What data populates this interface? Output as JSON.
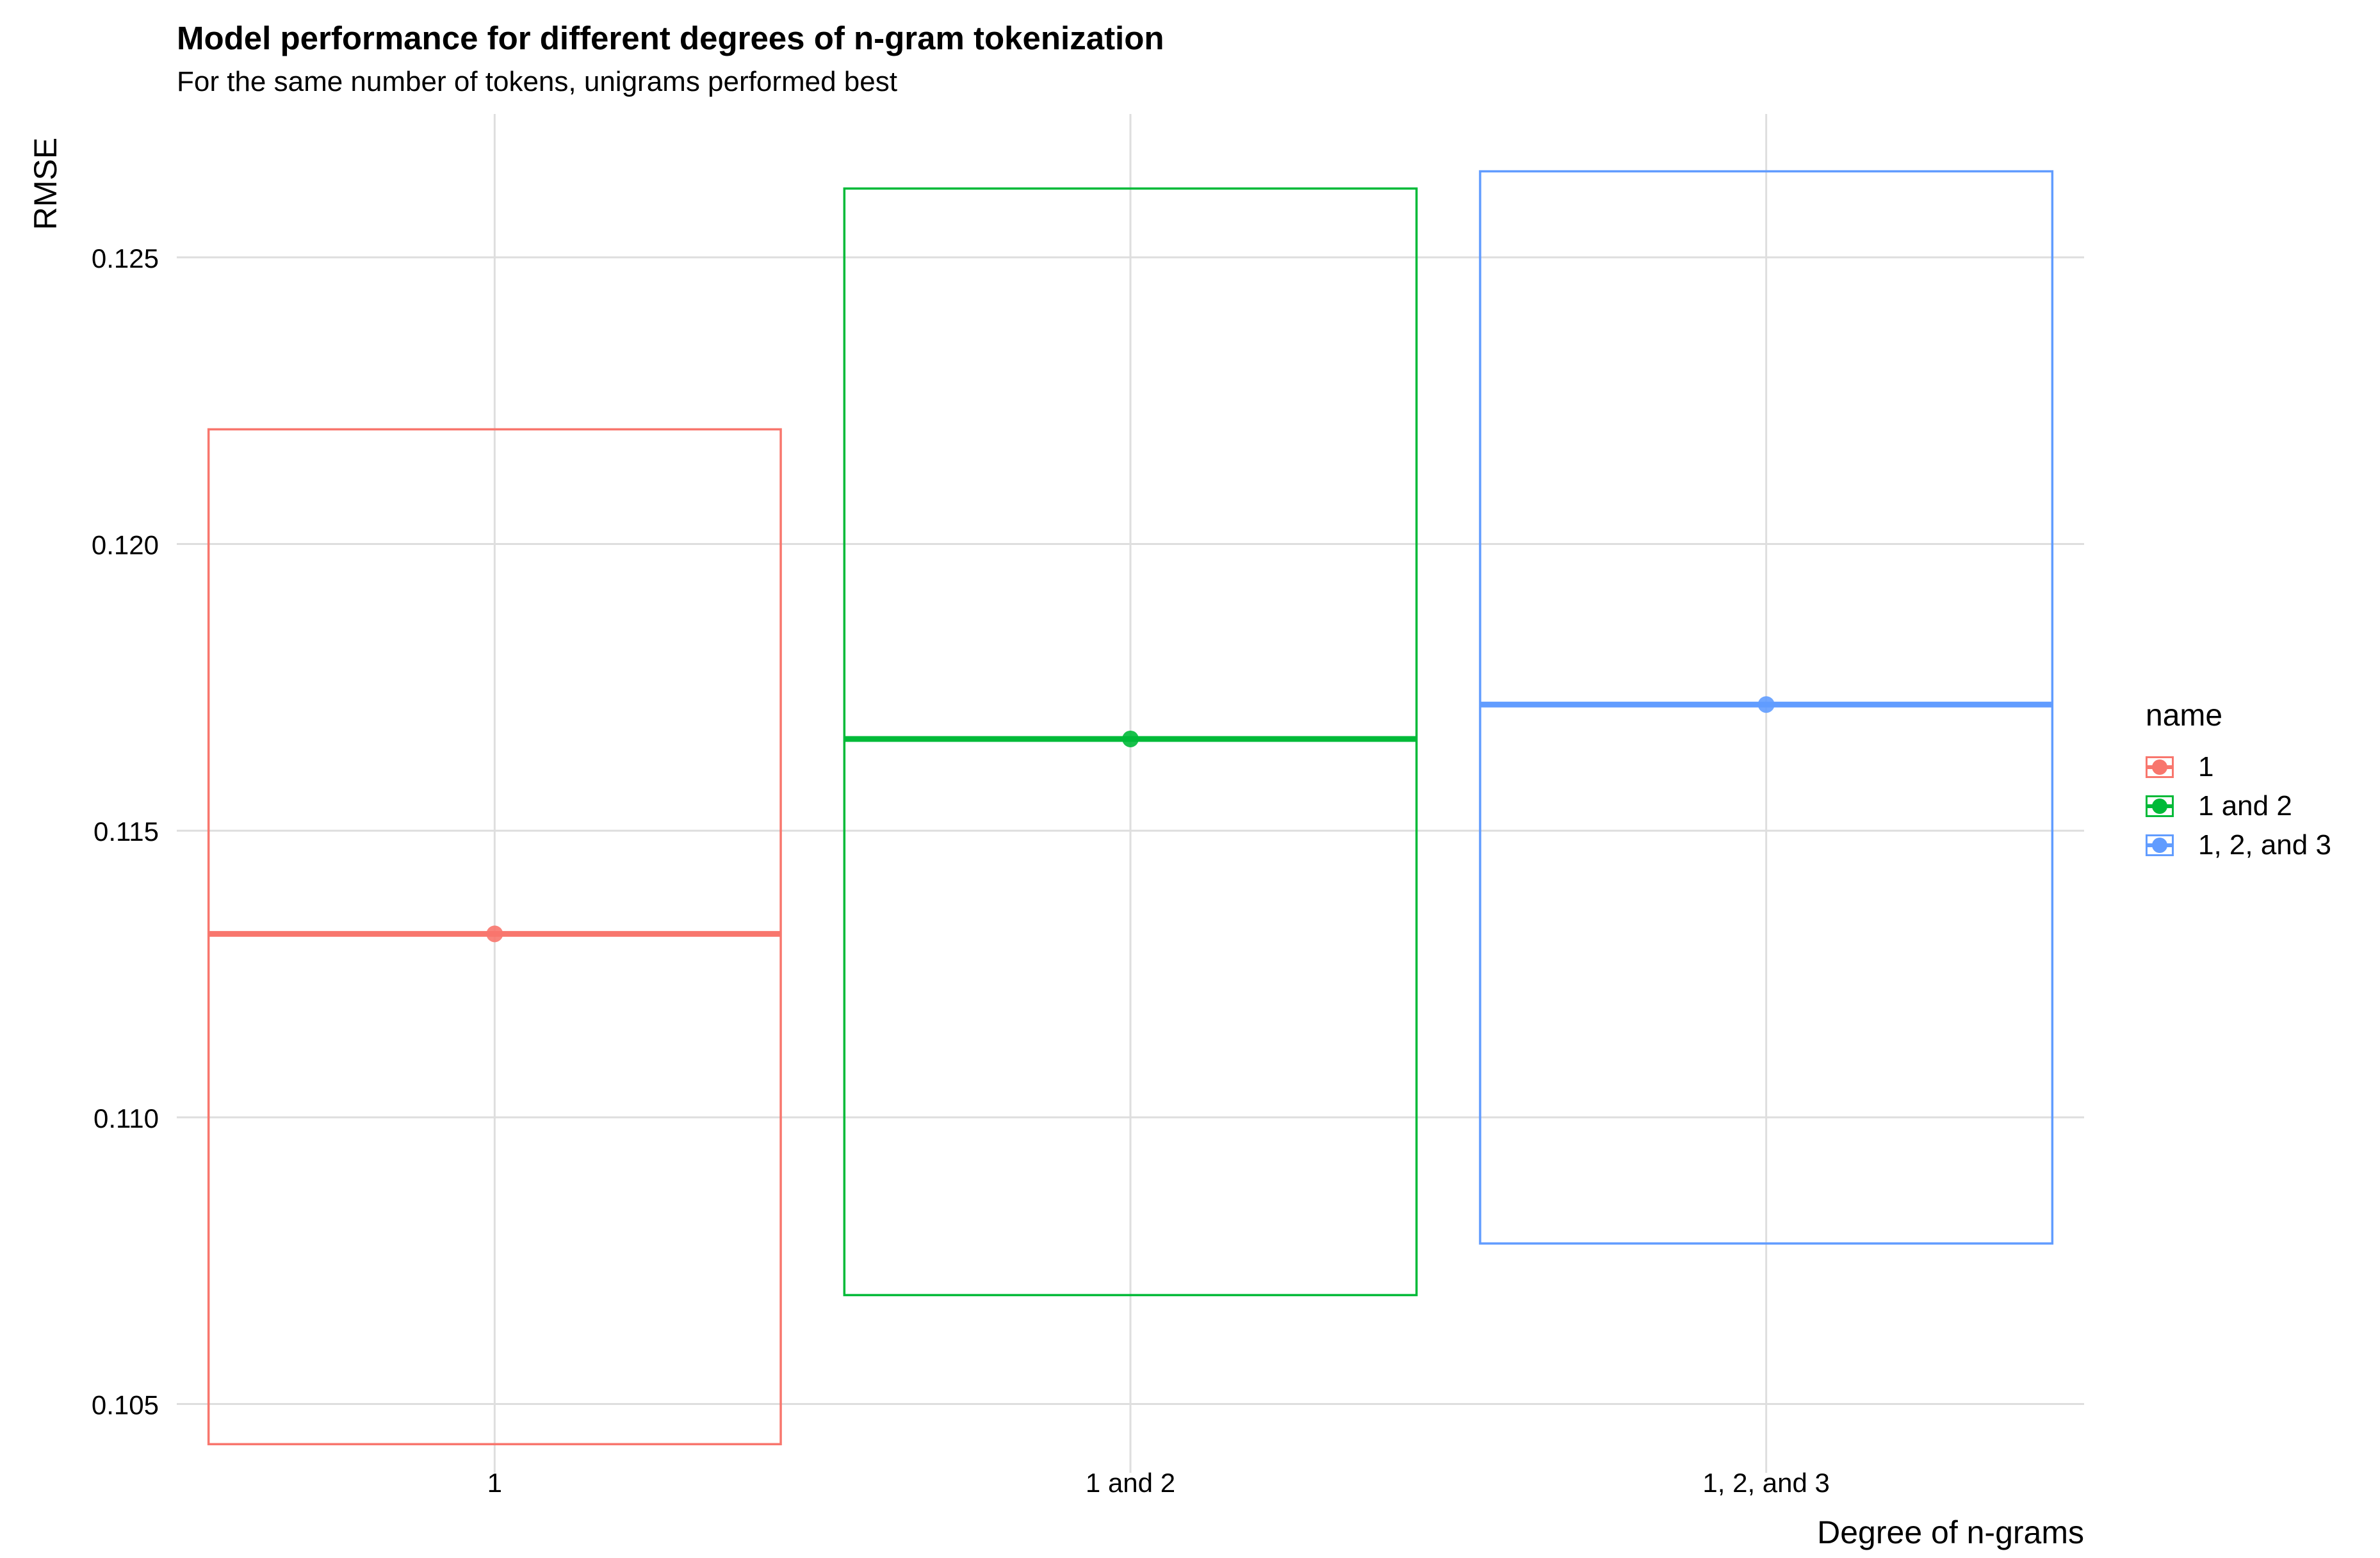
{
  "chart_data": {
    "type": "crossbar",
    "title": "Model performance for different degrees of n-gram tokenization",
    "subtitle": "For the same number of tokens, unigrams performed best",
    "xlabel": "Degree of n-grams",
    "ylabel": "RMSE",
    "ylim": [
      0.1038,
      0.1275
    ],
    "yticks": [
      0.105,
      0.11,
      0.115,
      0.12,
      0.125
    ],
    "ytick_labels": [
      "0.105",
      "0.110",
      "0.115",
      "0.120",
      "0.125"
    ],
    "categories": [
      "1",
      "1 and 2",
      "1, 2, and 3"
    ],
    "series": [
      {
        "name": "1",
        "color": "#F8766D",
        "mean": 0.1132,
        "lower": 0.1043,
        "upper": 0.122
      },
      {
        "name": "1 and 2",
        "color": "#00BA38",
        "mean": 0.1166,
        "lower": 0.1069,
        "upper": 0.1262
      },
      {
        "name": "1, 2, and 3",
        "color": "#619CFF",
        "mean": 0.1172,
        "lower": 0.1078,
        "upper": 0.1265
      }
    ],
    "grid": true,
    "legend_title": "name",
    "legend_position": "right"
  }
}
